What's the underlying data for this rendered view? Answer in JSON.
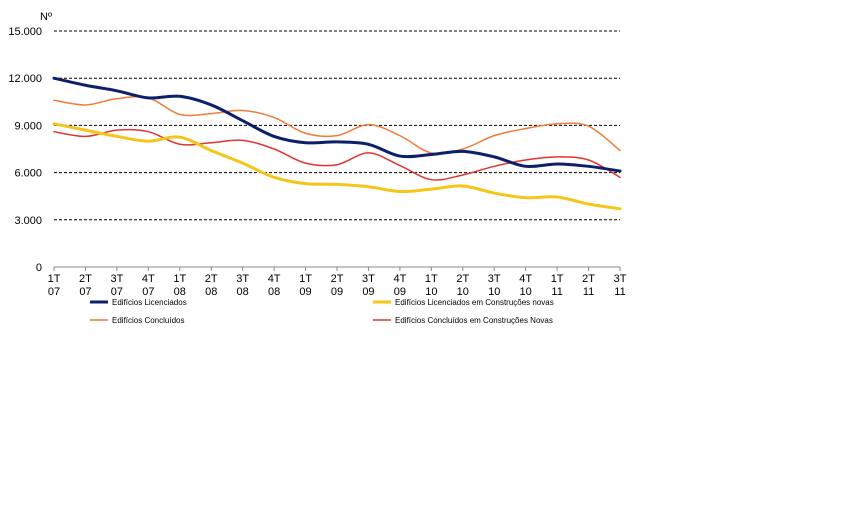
{
  "chart_data": {
    "type": "line",
    "title": "",
    "ylabel": "Nº",
    "xlabel": "",
    "ylim": [
      0,
      15000
    ],
    "yticks": [
      0,
      3000,
      6000,
      9000,
      12000,
      15000
    ],
    "ytick_labels": [
      "0",
      "3.000",
      "6.000",
      "9.000",
      "12.000",
      "15.000"
    ],
    "grid": "horizontal dashed",
    "categories": [
      [
        "1T",
        "07"
      ],
      [
        "2T",
        "07"
      ],
      [
        "3T",
        "07"
      ],
      [
        "4T",
        "07"
      ],
      [
        "1T",
        "08"
      ],
      [
        "2T",
        "08"
      ],
      [
        "3T",
        "08"
      ],
      [
        "4T",
        "08"
      ],
      [
        "1T",
        "09"
      ],
      [
        "2T",
        "09"
      ],
      [
        "3T",
        "09"
      ],
      [
        "4T",
        "09"
      ],
      [
        "1T",
        "10"
      ],
      [
        "2T",
        "10"
      ],
      [
        "3T",
        "10"
      ],
      [
        "4T",
        "10"
      ],
      [
        "1T",
        "11"
      ],
      [
        "2T",
        "11"
      ],
      [
        "3T",
        "11"
      ]
    ],
    "series": [
      {
        "name": "Edifícios Licenciados",
        "color": "#0b1f6b",
        "width": "thick",
        "values": [
          12000,
          11550,
          11200,
          10750,
          10850,
          10300,
          9300,
          8300,
          7900,
          7950,
          7800,
          7050,
          7150,
          7350,
          7000,
          6400,
          6550,
          6400,
          6100
        ],
        "legend_column": "left"
      },
      {
        "name": "Edifícios Licenciados em Construções novas",
        "color": "#f5c518",
        "width": "thick",
        "values": [
          9100,
          8700,
          8300,
          8000,
          8250,
          7400,
          6600,
          5700,
          5300,
          5250,
          5100,
          4800,
          4950,
          5150,
          4700,
          4400,
          4450,
          4000,
          3700
        ],
        "legend_column": "right"
      },
      {
        "name": "Edifícios Concluídos",
        "color": "#f07c3a",
        "width": "thin",
        "values": [
          10600,
          10300,
          10700,
          10750,
          9700,
          9750,
          9950,
          9500,
          8500,
          8350,
          9050,
          8350,
          7250,
          7500,
          8350,
          8800,
          9100,
          8950,
          7400
        ],
        "legend_column": "left"
      },
      {
        "name": "Edifícios Concluídos em Construções Novas",
        "color": "#e3342f",
        "width": "thin",
        "values": [
          8600,
          8300,
          8700,
          8600,
          7800,
          7900,
          8050,
          7500,
          6600,
          6500,
          7250,
          6450,
          5550,
          5850,
          6400,
          6800,
          7000,
          6800,
          5700
        ],
        "legend_column": "right"
      }
    ],
    "legend_placement": "bottom"
  }
}
